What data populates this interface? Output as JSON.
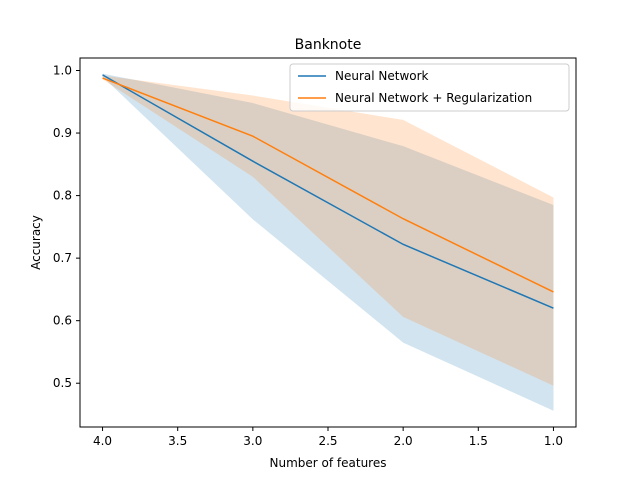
{
  "chart_data": {
    "type": "line",
    "title": "Banknote",
    "xlabel": "Number of features",
    "ylabel": "Accuracy",
    "x": [
      4.0,
      3.0,
      2.0,
      1.0
    ],
    "xlim": [
      4.15,
      0.85
    ],
    "ylim": [
      0.43,
      1.02
    ],
    "x_ticks": [
      4.0,
      3.5,
      3.0,
      2.5,
      2.0,
      1.5,
      1.0
    ],
    "x_tick_labels": [
      "4.0",
      "3.5",
      "3.0",
      "2.5",
      "2.0",
      "1.5",
      "1.0"
    ],
    "y_ticks": [
      0.5,
      0.6,
      0.7,
      0.8,
      0.9,
      1.0
    ],
    "y_tick_labels": [
      "0.5",
      "0.6",
      "0.7",
      "0.8",
      "0.9",
      "1.0"
    ],
    "grid": false,
    "legend_position": "top-right",
    "series": [
      {
        "name": "Neural Network",
        "color": "#1f77b4",
        "values": [
          0.993,
          0.855,
          0.722,
          0.62
        ],
        "lower": [
          0.99,
          0.762,
          0.565,
          0.456
        ],
        "upper": [
          0.995,
          0.948,
          0.879,
          0.785
        ]
      },
      {
        "name": "Neural Network + Regularization",
        "color": "#ff7f0e",
        "values": [
          0.988,
          0.895,
          0.763,
          0.646
        ],
        "lower": [
          0.986,
          0.83,
          0.606,
          0.496
        ],
        "upper": [
          0.992,
          0.96,
          0.921,
          0.797
        ]
      }
    ]
  }
}
